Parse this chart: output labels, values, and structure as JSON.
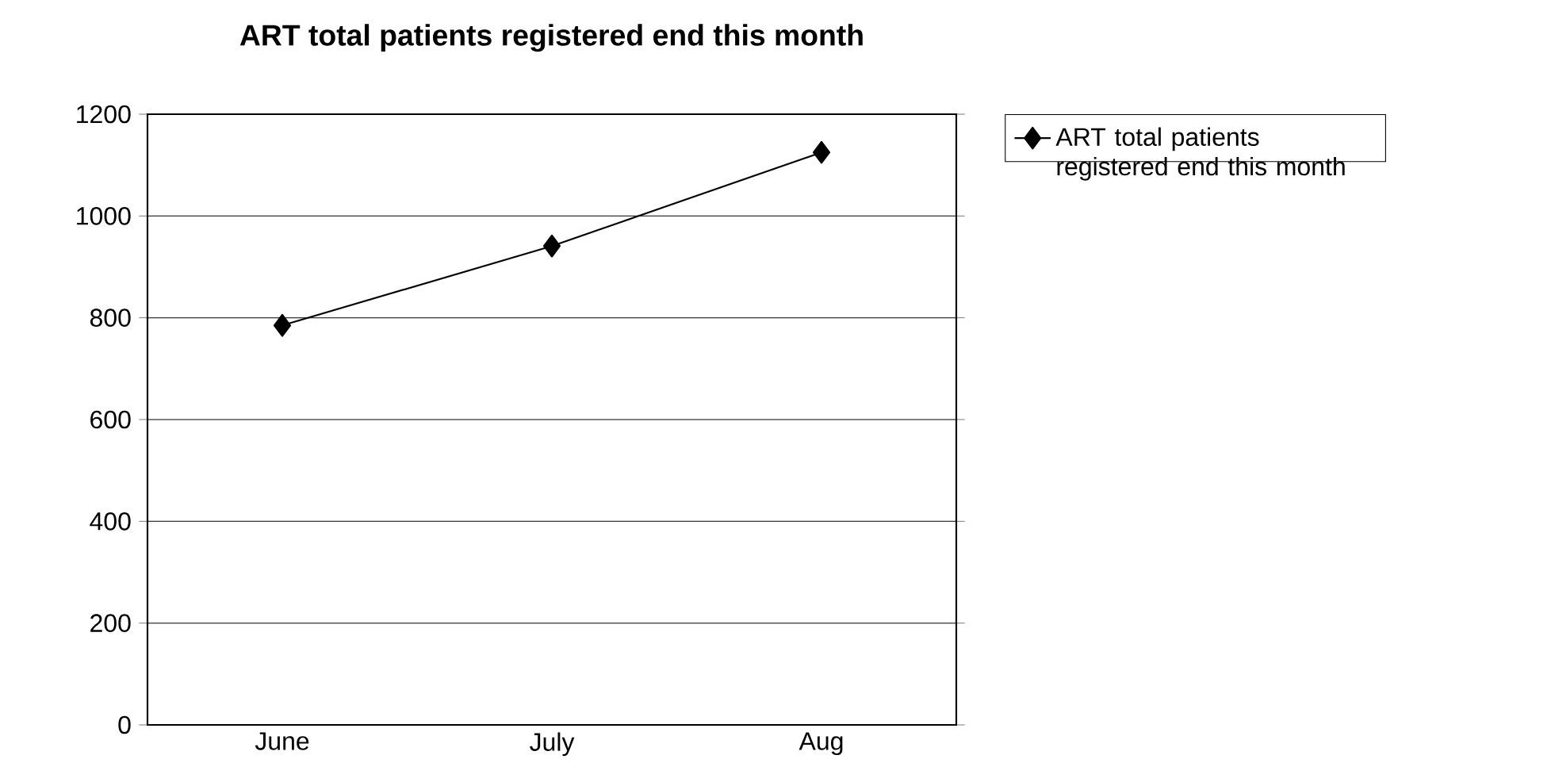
{
  "chart_data": {
    "type": "line",
    "title": "ART total patients registered end this month",
    "categories": [
      "June",
      "July",
      "Aug"
    ],
    "series": [
      {
        "name": "ART total patients registered end this month",
        "color": "#000000",
        "values": [
          785,
          941,
          1125
        ]
      }
    ],
    "ylim": [
      0,
      1200
    ],
    "yticks": [
      0,
      200,
      400,
      600,
      800,
      1000,
      1200
    ],
    "grid": "y",
    "legend": "right",
    "marker": "diamond",
    "line_style": "solid"
  }
}
